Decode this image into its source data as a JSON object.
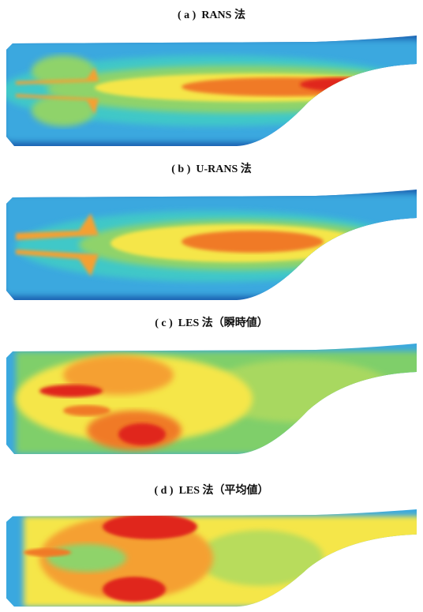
{
  "panels": [
    {
      "caption": "( a )  RANS 法"
    },
    {
      "caption": "( b )  U-RANS 法"
    },
    {
      "caption": "( c )  LES 法（瞬時値）"
    },
    {
      "caption": "( d )  LES 法（平均値）"
    }
  ]
}
